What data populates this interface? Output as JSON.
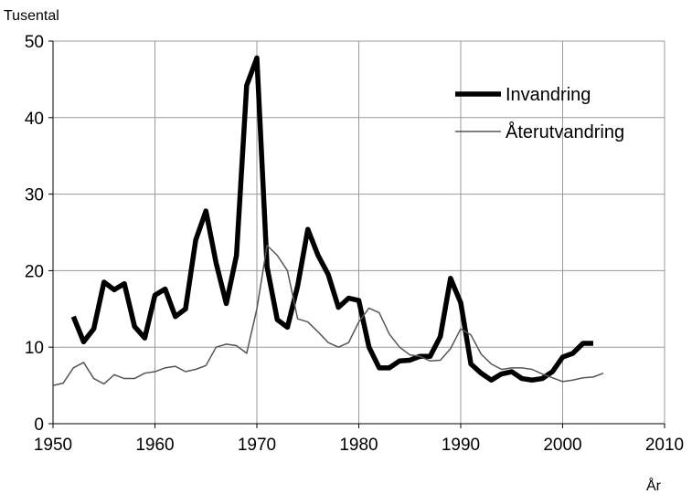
{
  "chart_data": {
    "type": "line",
    "y_label": "Tusental",
    "x_label": "År",
    "xlim": [
      1950,
      2010
    ],
    "xticks": [
      1950,
      1960,
      1970,
      1980,
      1990,
      2000,
      2010
    ],
    "ylim": [
      0,
      50
    ],
    "yticks": [
      0,
      10,
      20,
      30,
      40,
      50
    ],
    "grid": true,
    "legend": "upper right",
    "series": [
      {
        "name": "Invandring",
        "color": "#000000",
        "x": [
          1952,
          1953,
          1954,
          1955,
          1956,
          1957,
          1958,
          1959,
          1960,
          1961,
          1962,
          1963,
          1964,
          1965,
          1966,
          1967,
          1968,
          1969,
          1970,
          1971,
          1972,
          1973,
          1974,
          1975,
          1976,
          1977,
          1978,
          1979,
          1980,
          1981,
          1982,
          1983,
          1984,
          1985,
          1986,
          1987,
          1988,
          1989,
          1990,
          1991,
          1992,
          1993,
          1994,
          1995,
          1996,
          1997,
          1998,
          1999,
          2000,
          2001,
          2002,
          2003
        ],
        "values": [
          14,
          10.7,
          12.4,
          18.5,
          17.5,
          18.3,
          12.7,
          11.2,
          16.8,
          17.6,
          14,
          15,
          24,
          27.8,
          21,
          15.7,
          22,
          44.2,
          47.8,
          20.5,
          13.6,
          12.6,
          18,
          25.4,
          22,
          19.5,
          15.2,
          16.4,
          16.1,
          10,
          7.3,
          7.3,
          8.2,
          8.3,
          8.8,
          8.8,
          11.4,
          19,
          15.8,
          7.8,
          6.6,
          5.7,
          6.5,
          6.8,
          5.9,
          5.7,
          5.9,
          6.8,
          8.7,
          9.2,
          10.5,
          10.5
        ]
      },
      {
        "name": "Återutvandring",
        "color": "#555555",
        "x": [
          1950,
          1951,
          1952,
          1953,
          1954,
          1955,
          1956,
          1957,
          1958,
          1959,
          1960,
          1961,
          1962,
          1963,
          1964,
          1965,
          1966,
          1967,
          1968,
          1969,
          1970,
          1971,
          1972,
          1973,
          1974,
          1975,
          1976,
          1977,
          1978,
          1979,
          1980,
          1981,
          1982,
          1983,
          1984,
          1985,
          1986,
          1987,
          1988,
          1989,
          1990,
          1991,
          1992,
          1993,
          1994,
          1995,
          1996,
          1997,
          1998,
          1999,
          2000,
          2001,
          2002,
          2003,
          2004
        ],
        "values": [
          5,
          5.3,
          7.3,
          8,
          5.9,
          5.2,
          6.4,
          5.9,
          5.9,
          6.6,
          6.8,
          7.3,
          7.5,
          6.8,
          7.1,
          7.6,
          10,
          10.4,
          10.2,
          9.2,
          15,
          23.3,
          22,
          20,
          13.7,
          13.3,
          12,
          10.6,
          10,
          10.6,
          13.3,
          15.1,
          14.5,
          11.7,
          10,
          9,
          8.8,
          8.2,
          8.3,
          9.8,
          12.4,
          11.6,
          9.1,
          7.8,
          7.1,
          7.3,
          7.3,
          7.1,
          6.5,
          6,
          5.5,
          5.7,
          6,
          6.1,
          6.6
        ]
      }
    ]
  }
}
